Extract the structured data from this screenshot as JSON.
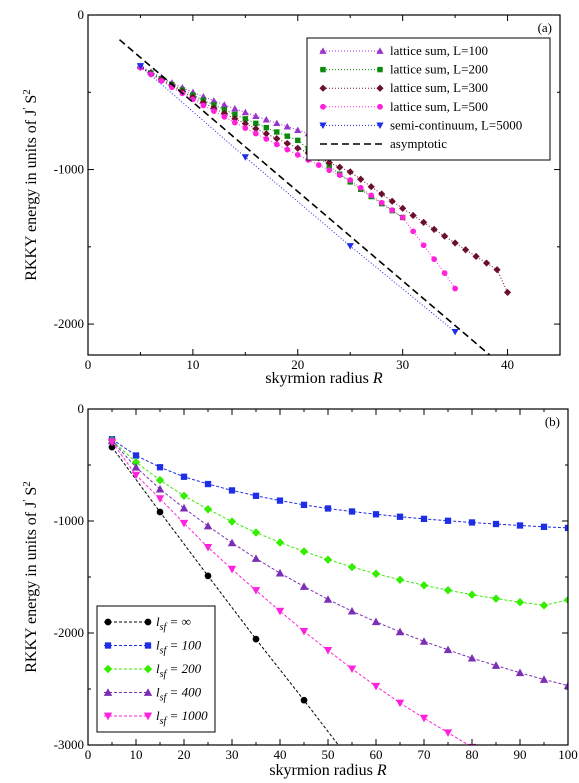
{
  "chart_data": [
    {
      "type": "scatter",
      "panel_label": "(a)",
      "xlabel": "skyrmion radius",
      "xlabel_var": "R",
      "ylabel": "RKKY energy in units of J",
      "ylabel_sup1": "'",
      "ylabel_s": "S",
      "ylabel_sup2": "2",
      "xlim": [
        0,
        45
      ],
      "ylim": [
        -2200,
        0
      ],
      "xticks": [
        0,
        10,
        20,
        30,
        40
      ],
      "yticks": [
        0,
        -1000,
        -2000
      ],
      "legend_position": "top-right",
      "series": [
        {
          "name": "lattice sum, L=100",
          "color": "#9a33cc",
          "marker": "triangle-up",
          "line": "dotted",
          "x": [
            5,
            6,
            7,
            8,
            9,
            10,
            11,
            12,
            13,
            14,
            15,
            16,
            17,
            18,
            19,
            20,
            21,
            22
          ],
          "y": [
            -330,
            -368,
            -404,
            -438,
            -470,
            -500,
            -528,
            -555,
            -581,
            -606,
            -630,
            -654,
            -677,
            -700,
            -722,
            -745,
            -766,
            -790
          ]
        },
        {
          "name": "lattice sum, L=200",
          "color": "#0a8a0a",
          "marker": "square",
          "line": "dotted",
          "x": [
            5,
            6,
            7,
            8,
            9,
            10,
            11,
            12,
            13,
            14,
            15,
            16,
            17,
            18,
            19,
            20,
            21,
            22,
            23,
            24,
            25,
            26,
            27,
            28,
            29,
            30
          ],
          "y": [
            -335,
            -375,
            -413,
            -450,
            -485,
            -518,
            -551,
            -582,
            -613,
            -643,
            -672,
            -701,
            -729,
            -757,
            -784,
            -811,
            -867,
            -923,
            -977,
            -1030,
            -1080,
            -1128,
            -1175,
            -1221,
            -1266,
            -1310
          ]
        },
        {
          "name": "lattice sum, L=300",
          "color": "#6b0f2f",
          "marker": "diamond",
          "line": "dotted",
          "x": [
            5,
            6,
            7,
            8,
            9,
            10,
            11,
            12,
            13,
            14,
            15,
            16,
            17,
            18,
            19,
            20,
            21,
            22,
            23,
            24,
            25,
            26,
            27,
            28,
            29,
            30,
            31,
            32,
            33,
            34,
            35,
            36,
            37,
            38,
            39,
            40
          ],
          "y": [
            -338,
            -380,
            -420,
            -459,
            -496,
            -533,
            -568,
            -603,
            -637,
            -671,
            -703,
            -736,
            -768,
            -800,
            -831,
            -862,
            -893,
            -924,
            -955,
            -985,
            -1015,
            -1063,
            -1111,
            -1158,
            -1205,
            -1251,
            -1297,
            -1342,
            -1387,
            -1431,
            -1475,
            -1519,
            -1562,
            -1605,
            -1648,
            -1795
          ]
        },
        {
          "name": "lattice sum, L=500",
          "color": "#ff22dd",
          "marker": "circle",
          "line": "dotted",
          "x": [
            5,
            6,
            7,
            8,
            9,
            10,
            11,
            12,
            13,
            14,
            15,
            16,
            17,
            18,
            19,
            20,
            21,
            22,
            23,
            24,
            25,
            26,
            27,
            28,
            29,
            30,
            31,
            32,
            33,
            34,
            35
          ],
          "y": [
            -340,
            -384,
            -426,
            -467,
            -507,
            -546,
            -585,
            -622,
            -659,
            -696,
            -732,
            -767,
            -802,
            -837,
            -871,
            -905,
            -938,
            -971,
            -1004,
            -1036,
            -1068,
            -1118,
            -1167,
            -1215,
            -1263,
            -1310,
            -1400,
            -1490,
            -1580,
            -1670,
            -1770
          ]
        },
        {
          "name": "semi-continuum, L=5000",
          "color": "#1e2ee6",
          "marker": "triangle-down",
          "line": "dotted",
          "x": [
            5,
            15,
            25,
            35
          ],
          "y": [
            -330,
            -920,
            -1495,
            -2050
          ]
        },
        {
          "name": "asymptotic",
          "color": "#000000",
          "marker": "none",
          "line": "dashed",
          "x": [
            3,
            38.3
          ],
          "y": [
            -160,
            -2200
          ]
        }
      ]
    },
    {
      "type": "line",
      "panel_label": "(b)",
      "xlabel": "skyrmion radius",
      "xlabel_var": "R",
      "ylabel": "RKKY energy in units of J",
      "ylabel_sup1": "'",
      "ylabel_s": "S",
      "ylabel_sup2": "2",
      "xlim": [
        0,
        100
      ],
      "ylim": [
        -3000,
        0
      ],
      "xticks": [
        0,
        10,
        20,
        30,
        40,
        50,
        60,
        70,
        80,
        90,
        100
      ],
      "yticks": [
        0,
        -1000,
        -2000,
        -3000
      ],
      "legend_position": "bottom-left",
      "series": [
        {
          "name_sub": "sf",
          "name_val": "= ∞",
          "color": "#000000",
          "marker": "circle",
          "x": [
            5,
            15,
            25,
            35,
            45,
            55
          ],
          "y": [
            -340,
            -920,
            -1490,
            -2055,
            -2600,
            -3160
          ]
        },
        {
          "name_sub": "sf",
          "name_val": "= 100",
          "color": "#1e2ee6",
          "marker": "square",
          "x": [
            5,
            10,
            15,
            20,
            25,
            30,
            35,
            40,
            45,
            50,
            55,
            60,
            65,
            70,
            75,
            80,
            85,
            90,
            95,
            100
          ],
          "y": [
            -270,
            -415,
            -520,
            -605,
            -670,
            -727,
            -775,
            -818,
            -856,
            -888,
            -915,
            -940,
            -962,
            -981,
            -998,
            -1013,
            -1027,
            -1040,
            -1052,
            -1062
          ]
        },
        {
          "name_sub": "sf",
          "name_val": "= 200",
          "color": "#33ee00",
          "marker": "diamond",
          "x": [
            5,
            10,
            15,
            20,
            25,
            30,
            35,
            40,
            45,
            50,
            55,
            60,
            65,
            70,
            75,
            80,
            85,
            90,
            95,
            100
          ],
          "y": [
            -280,
            -475,
            -635,
            -775,
            -895,
            -1005,
            -1103,
            -1192,
            -1272,
            -1345,
            -1411,
            -1471,
            -1525,
            -1574,
            -1618,
            -1658,
            -1693,
            -1725,
            -1753,
            -1705
          ]
        },
        {
          "name_sub": "sf",
          "name_val": "= 400",
          "color": "#7b2fb5",
          "marker": "triangle-up",
          "x": [
            5,
            10,
            15,
            20,
            25,
            30,
            35,
            40,
            45,
            50,
            55,
            60,
            65,
            70,
            75,
            80,
            85,
            90,
            95,
            100
          ],
          "y": [
            -285,
            -520,
            -715,
            -885,
            -1045,
            -1195,
            -1335,
            -1465,
            -1585,
            -1700,
            -1805,
            -1900,
            -1990,
            -2075,
            -2150,
            -2225,
            -2290,
            -2355,
            -2415,
            -2470
          ]
        },
        {
          "name_sub": "sf",
          "name_val": "= 1000",
          "color": "#ff22dd",
          "marker": "triangle-down",
          "x": [
            5,
            10,
            15,
            20,
            25,
            30,
            35,
            40,
            45,
            50,
            55,
            60,
            65,
            70,
            75,
            80
          ],
          "y": [
            -295,
            -590,
            -800,
            -1020,
            -1235,
            -1430,
            -1620,
            -1805,
            -1985,
            -2155,
            -2320,
            -2475,
            -2625,
            -2760,
            -2890,
            -3020
          ]
        }
      ]
    }
  ]
}
